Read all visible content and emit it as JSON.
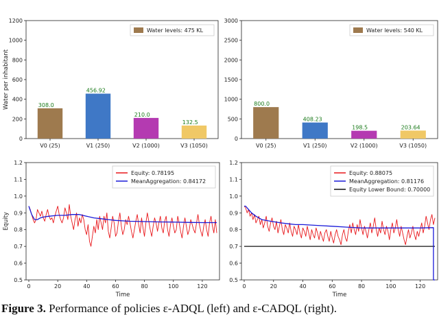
{
  "caption": {
    "label": "Figure 3.",
    "text": "Performance of policies ε-ADQL (left) and ε-CADQL (right)."
  },
  "colors": {
    "v0": "#9e7a4e",
    "v1": "#3f78c6",
    "v2": "#b43ab1",
    "v3": "#f0c866",
    "equity": "#e8161a",
    "mean": "#1818d8",
    "bound": "#111111",
    "legend_patch": "#9e7a4e",
    "value_label": "#1a7a1a"
  },
  "chart_data": [
    {
      "type": "bar",
      "categories": [
        "V0 (25)",
        "V1 (250)",
        "V2 (1000)",
        "V3 (1050)"
      ],
      "values": [
        308.0,
        456.92,
        210.0,
        132.5
      ],
      "value_labels": [
        "308.0",
        "456.92",
        "210.0",
        "132.5"
      ],
      "ylabel": "Water per inhabitant",
      "ylim": [
        0,
        1200
      ],
      "yticks": [
        0,
        200,
        400,
        600,
        800,
        1000,
        1200
      ],
      "legend": "Water levels: 475 KL",
      "legend_loc": "top-right"
    },
    {
      "type": "bar",
      "categories": [
        "V0 (25)",
        "V1 (250)",
        "V2 (1000)",
        "V3 (1050)"
      ],
      "values": [
        800.0,
        408.23,
        198.5,
        203.64
      ],
      "value_labels": [
        "800.0",
        "408.23",
        "198.5",
        "203.64"
      ],
      "ylabel": "",
      "ylim": [
        0,
        3000
      ],
      "yticks": [
        0,
        500,
        1000,
        1500,
        2000,
        2500,
        3000
      ],
      "legend": "Water levels: 540 KL",
      "legend_loc": "top-right"
    },
    {
      "type": "line",
      "xlabel": "Time",
      "ylabel": "Equity",
      "xlim": [
        0,
        130
      ],
      "ylim": [
        0.5,
        1.2
      ],
      "xticks": [
        0,
        20,
        40,
        60,
        80,
        100,
        120
      ],
      "yticks": [
        0.5,
        0.6,
        0.7,
        0.8,
        0.9,
        1.0,
        1.1,
        1.2
      ],
      "legend_loc": "top-right",
      "series": [
        {
          "name": "Equity: 0.78195",
          "role": "equity",
          "x": [
            0,
            1,
            2,
            3,
            4,
            5,
            6,
            7,
            8,
            9,
            10,
            11,
            12,
            13,
            14,
            15,
            16,
            17,
            18,
            19,
            20,
            21,
            22,
            23,
            24,
            25,
            26,
            27,
            28,
            29,
            30,
            31,
            32,
            33,
            34,
            35,
            36,
            37,
            38,
            39,
            40,
            41,
            42,
            43,
            44,
            45,
            46,
            47,
            48,
            49,
            50,
            51,
            52,
            53,
            54,
            55,
            56,
            57,
            58,
            59,
            60,
            61,
            62,
            63,
            64,
            65,
            66,
            67,
            68,
            69,
            70,
            71,
            72,
            73,
            74,
            75,
            76,
            77,
            78,
            79,
            80,
            81,
            82,
            83,
            84,
            85,
            86,
            87,
            88,
            89,
            90,
            91,
            92,
            93,
            94,
            95,
            96,
            97,
            98,
            99,
            100,
            101,
            102,
            103,
            104,
            105,
            106,
            107,
            108,
            109,
            110,
            111,
            112,
            113,
            114,
            115,
            116,
            117,
            118,
            119,
            120,
            121,
            122,
            123,
            124,
            125,
            126,
            127,
            128,
            129,
            130
          ],
          "y": [
            0.94,
            0.92,
            0.89,
            0.86,
            0.84,
            0.86,
            0.92,
            0.9,
            0.88,
            0.91,
            0.87,
            0.85,
            0.89,
            0.92,
            0.88,
            0.86,
            0.87,
            0.84,
            0.88,
            0.91,
            0.94,
            0.89,
            0.86,
            0.84,
            0.87,
            0.93,
            0.9,
            0.86,
            0.95,
            0.88,
            0.84,
            0.8,
            0.86,
            0.9,
            0.82,
            0.87,
            0.84,
            0.89,
            0.86,
            0.8,
            0.77,
            0.83,
            0.73,
            0.7,
            0.76,
            0.82,
            0.78,
            0.86,
            0.8,
            0.88,
            0.84,
            0.8,
            0.88,
            0.84,
            0.9,
            0.79,
            0.75,
            0.81,
            0.88,
            0.84,
            0.76,
            0.78,
            0.85,
            0.9,
            0.82,
            0.77,
            0.8,
            0.86,
            0.83,
            0.88,
            0.84,
            0.79,
            0.75,
            0.8,
            0.85,
            0.89,
            0.83,
            0.78,
            0.87,
            0.81,
            0.76,
            0.84,
            0.9,
            0.85,
            0.8,
            0.76,
            0.82,
            0.87,
            0.84,
            0.79,
            0.84,
            0.88,
            0.81,
            0.78,
            0.85,
            0.88,
            0.8,
            0.76,
            0.83,
            0.87,
            0.82,
            0.78,
            0.8,
            0.88,
            0.84,
            0.79,
            0.75,
            0.82,
            0.87,
            0.82,
            0.77,
            0.8,
            0.86,
            0.83,
            0.8,
            0.78,
            0.84,
            0.89,
            0.83,
            0.79,
            0.76,
            0.82,
            0.86,
            0.8,
            0.76,
            0.84,
            0.88,
            0.82,
            0.78,
            0.86,
            0.78
          ]
        },
        {
          "name": "MeanAggregation: 0.84172",
          "role": "mean",
          "x": [
            0,
            2,
            4,
            6,
            8,
            10,
            14,
            20,
            25,
            30,
            35,
            40,
            45,
            50,
            55,
            60,
            70,
            80,
            90,
            100,
            110,
            120,
            130
          ],
          "y": [
            0.94,
            0.89,
            0.86,
            0.86,
            0.87,
            0.875,
            0.88,
            0.885,
            0.885,
            0.89,
            0.89,
            0.88,
            0.87,
            0.865,
            0.86,
            0.855,
            0.85,
            0.848,
            0.846,
            0.845,
            0.843,
            0.842,
            0.842
          ]
        }
      ]
    },
    {
      "type": "line",
      "xlabel": "Time",
      "ylabel": "",
      "xlim": [
        0,
        130
      ],
      "ylim": [
        0.5,
        1.2
      ],
      "xticks": [
        0,
        20,
        40,
        60,
        80,
        100,
        120
      ],
      "yticks": [
        0.5,
        0.6,
        0.7,
        0.8,
        0.9,
        1.0,
        1.1,
        1.2
      ],
      "legend_loc": "top-right",
      "series": [
        {
          "name": "Equity: 0.88075",
          "role": "equity",
          "x": [
            0,
            1,
            2,
            3,
            4,
            5,
            6,
            7,
            8,
            9,
            10,
            11,
            12,
            13,
            14,
            15,
            16,
            17,
            18,
            19,
            20,
            21,
            22,
            23,
            24,
            25,
            26,
            27,
            28,
            29,
            30,
            31,
            32,
            33,
            34,
            35,
            36,
            37,
            38,
            39,
            40,
            41,
            42,
            43,
            44,
            45,
            46,
            47,
            48,
            49,
            50,
            51,
            52,
            53,
            54,
            55,
            56,
            57,
            58,
            59,
            60,
            61,
            62,
            63,
            64,
            65,
            66,
            67,
            68,
            69,
            70,
            71,
            72,
            73,
            74,
            75,
            76,
            77,
            78,
            79,
            80,
            81,
            82,
            83,
            84,
            85,
            86,
            87,
            88,
            89,
            90,
            91,
            92,
            93,
            94,
            95,
            96,
            97,
            98,
            99,
            100,
            101,
            102,
            103,
            104,
            105,
            106,
            107,
            108,
            109,
            110,
            111,
            112,
            113,
            114,
            115,
            116,
            117,
            118,
            119,
            120,
            121,
            122,
            123,
            124,
            125,
            126,
            127,
            128,
            129,
            130
          ],
          "y": [
            0.94,
            0.93,
            0.9,
            0.92,
            0.88,
            0.9,
            0.86,
            0.89,
            0.84,
            0.86,
            0.88,
            0.83,
            0.86,
            0.81,
            0.84,
            0.88,
            0.82,
            0.79,
            0.84,
            0.87,
            0.82,
            0.8,
            0.85,
            0.78,
            0.82,
            0.86,
            0.8,
            0.77,
            0.83,
            0.81,
            0.78,
            0.84,
            0.79,
            0.76,
            0.82,
            0.8,
            0.77,
            0.83,
            0.78,
            0.75,
            0.81,
            0.79,
            0.76,
            0.82,
            0.78,
            0.74,
            0.8,
            0.77,
            0.75,
            0.81,
            0.78,
            0.74,
            0.79,
            0.76,
            0.73,
            0.78,
            0.8,
            0.76,
            0.73,
            0.79,
            0.75,
            0.72,
            0.77,
            0.8,
            0.76,
            0.74,
            0.71,
            0.77,
            0.8,
            0.75,
            0.73,
            0.79,
            0.83,
            0.78,
            0.84,
            0.8,
            0.77,
            0.83,
            0.79,
            0.86,
            0.81,
            0.77,
            0.82,
            0.79,
            0.75,
            0.8,
            0.84,
            0.78,
            0.82,
            0.87,
            0.8,
            0.76,
            0.81,
            0.78,
            0.85,
            0.8,
            0.77,
            0.82,
            0.79,
            0.74,
            0.8,
            0.84,
            0.78,
            0.81,
            0.86,
            0.8,
            0.76,
            0.82,
            0.78,
            0.74,
            0.71,
            0.76,
            0.8,
            0.75,
            0.78,
            0.82,
            0.77,
            0.74,
            0.79,
            0.76,
            0.8,
            0.84,
            0.78,
            0.82,
            0.88,
            0.84,
            0.8,
            0.86,
            0.89,
            0.83,
            0.87
          ]
        },
        {
          "name": "MeanAggregation: 0.81176",
          "role": "mean",
          "x": [
            0,
            1,
            3,
            5,
            8,
            12,
            18,
            25,
            30,
            35,
            40,
            50,
            60,
            70,
            80,
            90,
            100,
            110,
            120,
            129,
            129,
            130
          ],
          "y": [
            0.94,
            0.94,
            0.92,
            0.9,
            0.88,
            0.86,
            0.85,
            0.84,
            0.835,
            0.83,
            0.83,
            0.825,
            0.82,
            0.815,
            0.81,
            0.81,
            0.81,
            0.81,
            0.81,
            0.812,
            0.5,
            0.5
          ]
        },
        {
          "name": "Equity Lower Bound: 0.70000",
          "role": "bound",
          "x": [
            0,
            130
          ],
          "y": [
            0.7,
            0.7
          ]
        }
      ]
    }
  ]
}
